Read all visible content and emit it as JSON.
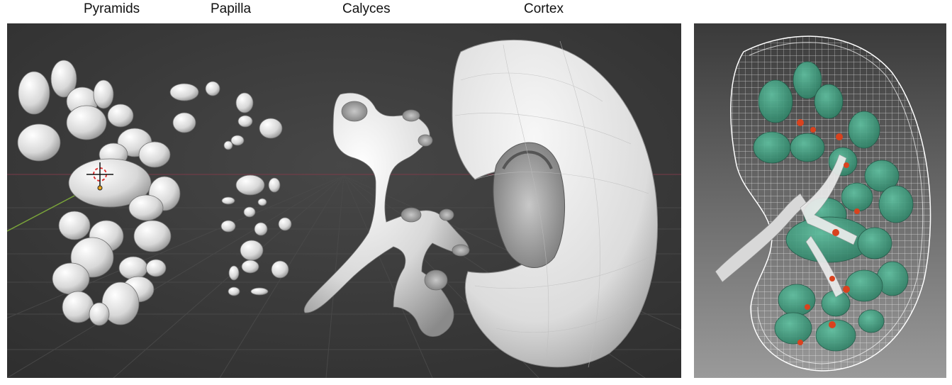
{
  "labels": {
    "pyramids": "Pyramids",
    "papilla": "Papilla",
    "calyces": "Calyces",
    "cortex": "Cortex"
  },
  "colors": {
    "viewport_bg": "#3d3d3d",
    "mesh": "#e6e6e6",
    "pyramid_green": "#3f9e80",
    "calyx_red": "#d9421e",
    "wireframe": "#ffffff"
  },
  "icons": {
    "origin": "3d-cursor-icon"
  }
}
